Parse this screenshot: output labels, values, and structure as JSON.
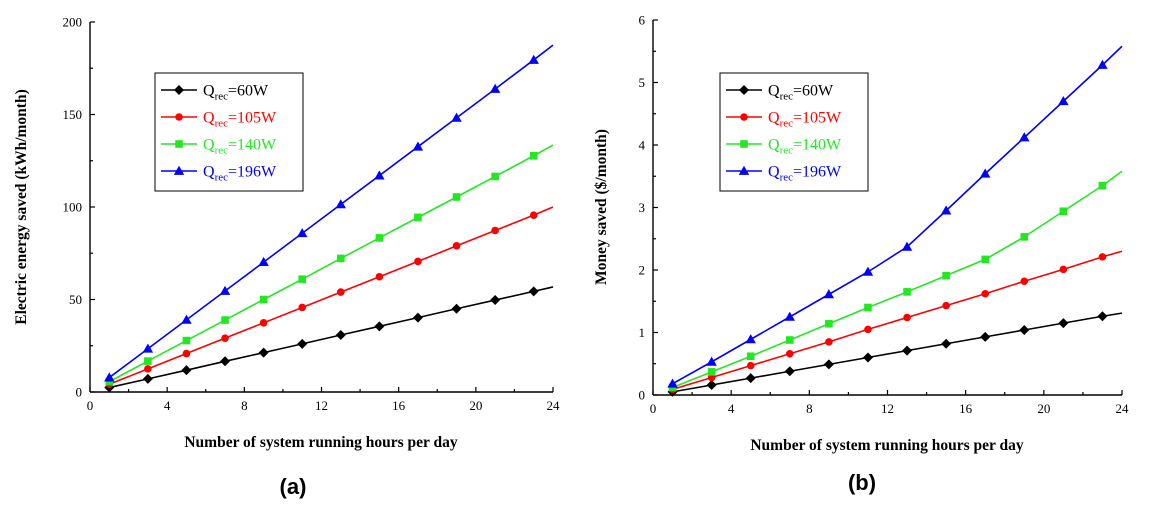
{
  "captions": [
    "(a)",
    "(b)"
  ],
  "colors": {
    "Q_rec=60W": "#000000",
    "Q_rec=105W": "#ff0000",
    "Q_rec=140W": "#22e822",
    "Q_rec=196W": "#0000ff"
  },
  "chart_data": [
    {
      "type": "line",
      "xlabel": "Number of system running hours per day",
      "ylabel": "Electric energy saved (kWh/month)",
      "xlim": [
        0,
        24
      ],
      "ylim": [
        0,
        200
      ],
      "xticks": [
        0,
        4,
        8,
        12,
        16,
        20,
        24
      ],
      "yticks": [
        0,
        50,
        100,
        150,
        200
      ],
      "legend_position": "top-left",
      "x": [
        1,
        3,
        5,
        7,
        9,
        11,
        13,
        15,
        17,
        19,
        21,
        23,
        24
      ],
      "series": [
        {
          "name": "Q_rec=60W",
          "legend_main": "Q",
          "legend_sub": "rec",
          "legend_rest": "=60W",
          "marker": "diamond",
          "values": [
            2.4,
            7.1,
            11.8,
            16.6,
            21.3,
            26.0,
            30.8,
            35.5,
            40.2,
            45.0,
            49.7,
            54.4,
            56.8
          ]
        },
        {
          "name": "Q_rec=105W",
          "legend_main": "Q",
          "legend_sub": "rec",
          "legend_rest": "=105W",
          "marker": "circle",
          "values": [
            4.2,
            12.5,
            20.8,
            29.1,
            37.4,
            45.7,
            54.0,
            62.3,
            70.6,
            79.0,
            87.3,
            95.6,
            100.0
          ]
        },
        {
          "name": "Q_rec=140W",
          "legend_main": "Q",
          "legend_sub": "rec",
          "legend_rest": "=140W",
          "marker": "square",
          "values": [
            5.6,
            16.7,
            27.8,
            38.9,
            50.0,
            61.0,
            72.2,
            83.3,
            94.4,
            105.4,
            116.5,
            127.7,
            133.5
          ]
        },
        {
          "name": "Q_rec=196W",
          "legend_main": "Q",
          "legend_sub": "rec",
          "legend_rest": "=196W",
          "marker": "triangle",
          "values": [
            7.8,
            23.4,
            39.0,
            54.6,
            70.2,
            85.8,
            101.4,
            117.0,
            132.6,
            148.2,
            163.8,
            179.5,
            187.5
          ]
        }
      ]
    },
    {
      "type": "line",
      "xlabel": "Number of system running hours per day",
      "ylabel": "Money saved ($/month)",
      "xlim": [
        0,
        24
      ],
      "ylim": [
        0,
        6
      ],
      "xticks": [
        0,
        4,
        8,
        12,
        16,
        20,
        24
      ],
      "yticks": [
        0,
        1,
        2,
        3,
        4,
        5,
        6
      ],
      "legend_position": "top-left",
      "x": [
        1,
        3,
        5,
        7,
        9,
        11,
        13,
        15,
        17,
        19,
        21,
        23,
        24
      ],
      "series": [
        {
          "name": "Q_rec=60W",
          "legend_main": "Q",
          "legend_sub": "rec",
          "legend_rest": "=60W",
          "marker": "diamond",
          "values": [
            0.05,
            0.16,
            0.27,
            0.38,
            0.49,
            0.6,
            0.71,
            0.82,
            0.93,
            1.04,
            1.15,
            1.26,
            1.31
          ]
        },
        {
          "name": "Q_rec=105W",
          "legend_main": "Q",
          "legend_sub": "rec",
          "legend_rest": "=105W",
          "marker": "circle",
          "values": [
            0.09,
            0.28,
            0.47,
            0.66,
            0.85,
            1.05,
            1.24,
            1.43,
            1.62,
            1.82,
            2.01,
            2.21,
            2.3
          ]
        },
        {
          "name": "Q_rec=140W",
          "legend_main": "Q",
          "legend_sub": "rec",
          "legend_rest": "=140W",
          "marker": "square",
          "values": [
            0.12,
            0.37,
            0.62,
            0.88,
            1.14,
            1.4,
            1.65,
            1.91,
            2.17,
            2.53,
            2.94,
            3.35,
            3.58
          ]
        },
        {
          "name": "Q_rec=196W",
          "legend_main": "Q",
          "legend_sub": "rec",
          "legend_rest": "=196W",
          "marker": "triangle",
          "values": [
            0.18,
            0.53,
            0.89,
            1.25,
            1.61,
            1.97,
            2.37,
            2.95,
            3.54,
            4.12,
            4.7,
            5.28,
            5.58
          ]
        }
      ]
    }
  ]
}
